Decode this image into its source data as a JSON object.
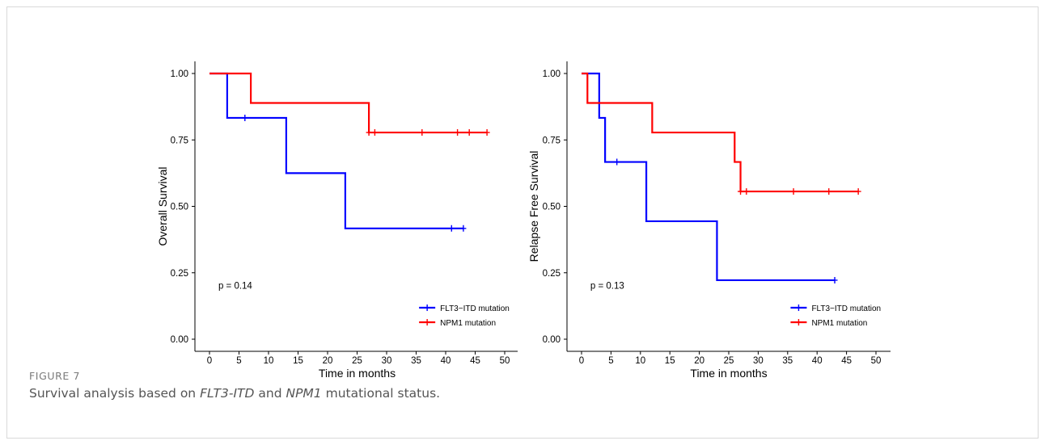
{
  "figure": {
    "label": "FIGURE 7",
    "caption_parts": [
      {
        "text": "Survival analysis based on ",
        "italic": false
      },
      {
        "text": "FLT3-ITD",
        "italic": true
      },
      {
        "text": " and ",
        "italic": false
      },
      {
        "text": "NPM1",
        "italic": true
      },
      {
        "text": " mutational status.",
        "italic": false
      }
    ]
  },
  "chart_data": [
    {
      "type": "line",
      "step": true,
      "xlabel": "Time in months",
      "ylabel": "Overall Survival",
      "xlim": [
        0,
        50
      ],
      "ylim": [
        0,
        1
      ],
      "xticks": [
        0,
        5,
        10,
        15,
        20,
        25,
        30,
        35,
        40,
        45,
        50
      ],
      "yticks": [
        0.0,
        0.25,
        0.5,
        0.75,
        1.0
      ],
      "ytick_labels": [
        "0.00",
        "0.25",
        "0.50",
        "0.75",
        "1.00"
      ],
      "grid": false,
      "legend_position": "bottom-right",
      "annotation": "p = 0.14",
      "series": [
        {
          "name": "FLT3−ITD mutation",
          "color": "#0000ff",
          "x": [
            0,
            3,
            13,
            23,
            43
          ],
          "y": [
            1.0,
            0.833,
            0.625,
            0.417,
            0.417
          ],
          "censored_x": [
            6,
            41,
            43
          ]
        },
        {
          "name": "NPM1 mutation",
          "color": "#ff0000",
          "x": [
            0,
            7,
            27,
            47
          ],
          "y": [
            1.0,
            0.889,
            0.778,
            0.778
          ],
          "censored_x": [
            27,
            28,
            36,
            42,
            44,
            47
          ]
        }
      ]
    },
    {
      "type": "line",
      "step": true,
      "xlabel": "Time in months",
      "ylabel": "Relapse Free Survival",
      "xlim": [
        0,
        50
      ],
      "ylim": [
        0,
        1
      ],
      "xticks": [
        0,
        5,
        10,
        15,
        20,
        25,
        30,
        35,
        40,
        45,
        50
      ],
      "yticks": [
        0.0,
        0.25,
        0.5,
        0.75,
        1.0
      ],
      "ytick_labels": [
        "0.00",
        "0.25",
        "0.50",
        "0.75",
        "1.00"
      ],
      "grid": false,
      "legend_position": "bottom-right",
      "annotation": "p = 0.13",
      "series": [
        {
          "name": "FLT3−ITD mutation",
          "color": "#0000ff",
          "x": [
            0,
            3,
            4,
            11,
            23,
            43
          ],
          "y": [
            1.0,
            0.833,
            0.667,
            0.444,
            0.222,
            0.222
          ],
          "censored_x": [
            6,
            43
          ]
        },
        {
          "name": "NPM1 mutation",
          "color": "#ff0000",
          "x": [
            0,
            1,
            12,
            26,
            27,
            47
          ],
          "y": [
            1.0,
            0.889,
            0.778,
            0.667,
            0.556,
            0.556
          ],
          "censored_x": [
            27,
            28,
            36,
            42,
            47
          ]
        }
      ]
    }
  ]
}
